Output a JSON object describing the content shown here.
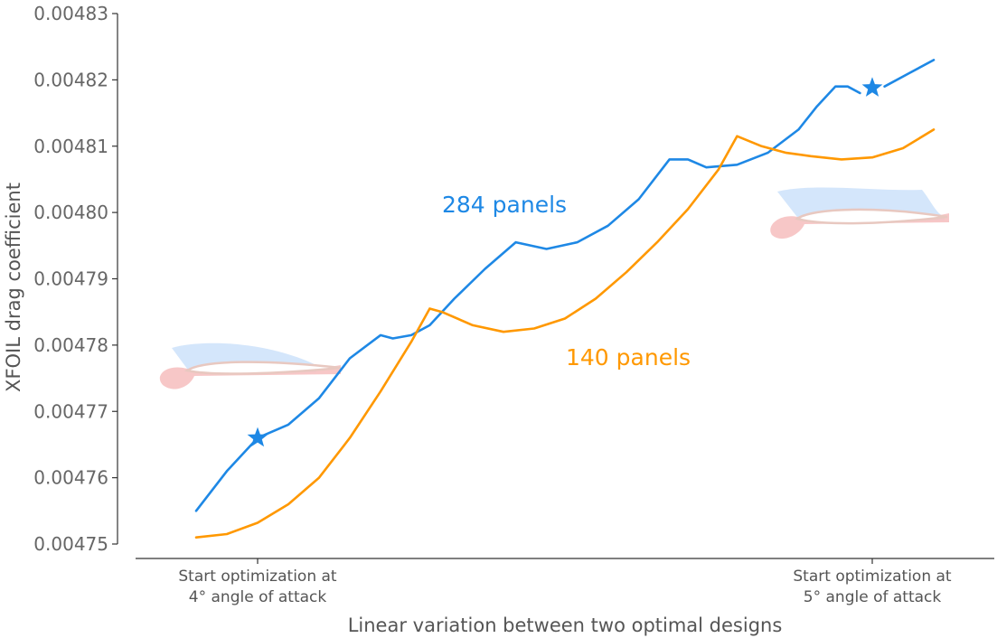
{
  "chart_data": {
    "type": "line",
    "xlabel": "Linear variation between two optimal designs",
    "ylabel": "XFOIL drag coefficient",
    "ylim": [
      0.00475,
      0.00483
    ],
    "yticks": [
      "0.00475",
      "0.00476",
      "0.00477",
      "0.00478",
      "0.00479",
      "0.00480",
      "0.00481",
      "0.00482",
      "0.00483"
    ],
    "xlim": [
      -0.2,
      1.2
    ],
    "x_markers": [
      {
        "x": 0,
        "label_line1": "Start optimization at",
        "label_line2": "4° angle of attack"
      },
      {
        "x": 1,
        "label_line1": "Start optimization at",
        "label_line2": "5° angle of attack"
      }
    ],
    "grid": false,
    "legend": "none",
    "series": [
      {
        "name": "284 panels",
        "color": "#1e88e5",
        "segments": [
          {
            "x": [
              -0.1,
              -0.05,
              0.0
            ],
            "y": [
              0.004755,
              0.004761,
              0.004766
            ]
          },
          {
            "x": [
              0.0,
              0.05,
              0.1,
              0.15,
              0.2,
              0.22,
              0.25,
              0.28,
              0.32,
              0.37,
              0.42,
              0.47,
              0.52,
              0.57,
              0.62,
              0.67,
              0.7,
              0.73,
              0.78,
              0.83,
              0.88,
              0.91,
              0.94,
              0.96,
              0.98
            ],
            "y": [
              0.004766,
              0.004768,
              0.004772,
              0.004778,
              0.0047815,
              0.004781,
              0.0047815,
              0.004783,
              0.004787,
              0.0047915,
              0.0047955,
              0.0047945,
              0.0047955,
              0.004798,
              0.004802,
              0.004808,
              0.004808,
              0.0048068,
              0.0048072,
              0.004809,
              0.0048125,
              0.004816,
              0.004819,
              0.004819,
              0.004818
            ]
          },
          {
            "x": [
              1.02,
              1.06,
              1.1
            ],
            "y": [
              0.004819,
              0.004821,
              0.004823
            ]
          }
        ]
      },
      {
        "name": "140 panels",
        "color": "#ff9800",
        "segments": [
          {
            "x": [
              -0.1,
              -0.05,
              0.0,
              0.05,
              0.1,
              0.15,
              0.2,
              0.25,
              0.28,
              0.3,
              0.35,
              0.4,
              0.45,
              0.5,
              0.55,
              0.6,
              0.65,
              0.7,
              0.75,
              0.78,
              0.82,
              0.86,
              0.9,
              0.95,
              1.0,
              1.05,
              1.1
            ],
            "y": [
              0.004751,
              0.0047515,
              0.0047532,
              0.004756,
              0.00476,
              0.004766,
              0.004773,
              0.0047805,
              0.0047855,
              0.004785,
              0.004783,
              0.004782,
              0.0047825,
              0.004784,
              0.004787,
              0.004791,
              0.0047955,
              0.0048005,
              0.0048065,
              0.0048115,
              0.00481,
              0.004809,
              0.0048085,
              0.004808,
              0.0048083,
              0.0048097,
              0.0048125
            ]
          }
        ]
      }
    ],
    "markers": [
      {
        "x": 0,
        "y": 0.004766,
        "shape": "star",
        "color": "#1e88e5"
      },
      {
        "x": 1,
        "y": 0.0048188,
        "shape": "star",
        "color": "#1e88e5"
      }
    ]
  }
}
